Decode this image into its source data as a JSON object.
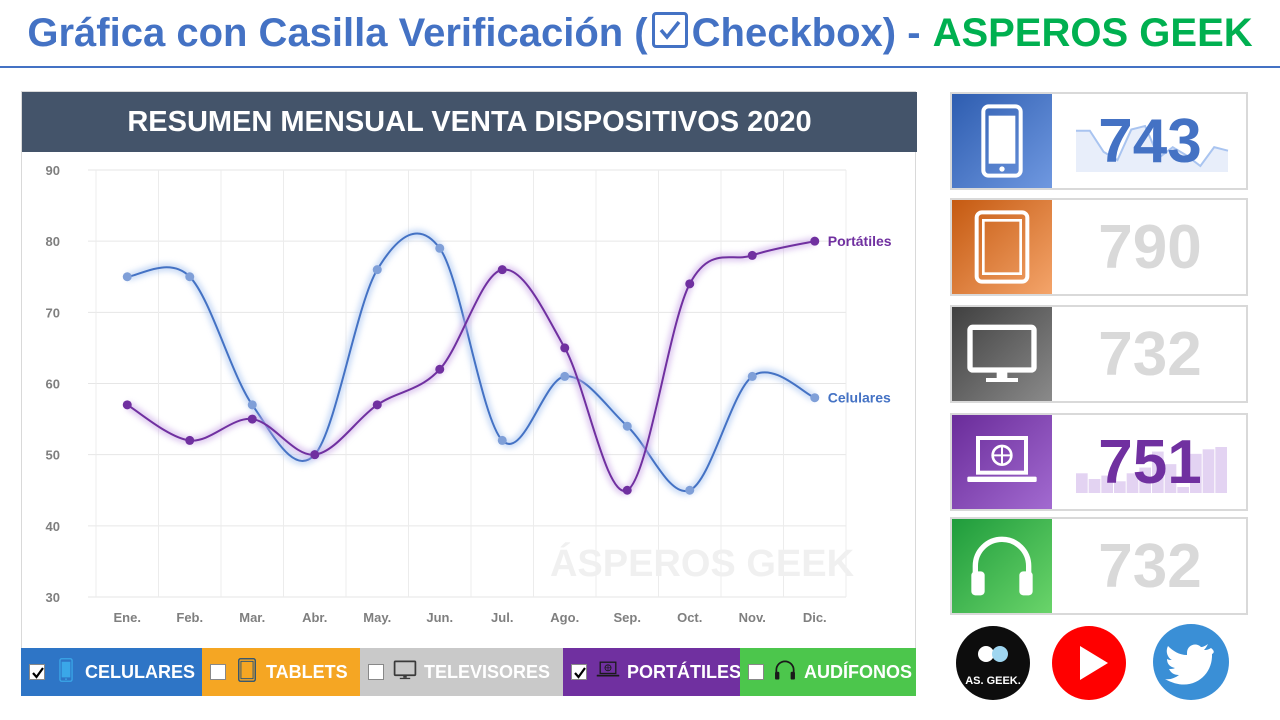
{
  "header": {
    "title_part1": "Gráfica con Casilla Verificación (",
    "title_part2": "Checkbox) -",
    "brand": "ASPEROS GEEK"
  },
  "colors": {
    "celulares": "#4472c4",
    "portatiles": "#7030a0",
    "tablets": "#ed7d31",
    "televisores": "#595959",
    "audifonos": "#00b050",
    "title_bar": "#44546a"
  },
  "chart_data": {
    "type": "line",
    "title": "RESUMEN MENSUAL VENTA DISPOSITIVOS 2020",
    "categories": [
      "Ene.",
      "Feb.",
      "Mar.",
      "Abr.",
      "May.",
      "Jun.",
      "Jul.",
      "Ago.",
      "Sep.",
      "Oct.",
      "Nov.",
      "Dic."
    ],
    "series": [
      {
        "name": "Celulares",
        "values": [
          75,
          75,
          57,
          50,
          76,
          79,
          52,
          61,
          54,
          45,
          61,
          58
        ]
      },
      {
        "name": "Portátiles",
        "values": [
          57,
          52,
          55,
          50,
          57,
          62,
          76,
          65,
          45,
          74,
          78,
          80
        ]
      }
    ],
    "ylim": [
      30,
      90
    ],
    "yticks": [
      30,
      40,
      50,
      60,
      70,
      80,
      90
    ],
    "grid": true,
    "smooth": true,
    "watermark": "ÁSPEROS GEEK"
  },
  "legend": [
    {
      "label": "CELULARES",
      "checked": true,
      "bg": "#2e75c6",
      "icon": "phone-icon"
    },
    {
      "label": "TABLETS",
      "checked": false,
      "bg": "#f5a623",
      "icon": "tablet-icon"
    },
    {
      "label": "TELEVISORES",
      "checked": false,
      "bg": "#c9c9c9",
      "icon": "tv-icon"
    },
    {
      "label": "PORTÁTILES",
      "checked": true,
      "bg": "#7030a0",
      "icon": "laptop-icon"
    },
    {
      "label": "AUDÍFONOS",
      "checked": false,
      "bg": "#4cc64c",
      "icon": "headphones-icon"
    }
  ],
  "cards": [
    {
      "name": "celulares",
      "value": "743",
      "active": true,
      "icon": "phone-icon"
    },
    {
      "name": "tablets",
      "value": "790",
      "active": false,
      "icon": "tablet-icon"
    },
    {
      "name": "televisores",
      "value": "732",
      "active": false,
      "icon": "tv-icon"
    },
    {
      "name": "portatiles",
      "value": "751",
      "active": true,
      "icon": "laptop-icon"
    },
    {
      "name": "audifonos",
      "value": "732",
      "active": false,
      "icon": "headphones-icon"
    }
  ],
  "social": {
    "logo_text": "AS. GEEK.",
    "icons": [
      "asperos-geek-logo-icon",
      "youtube-icon",
      "twitter-icon"
    ]
  }
}
